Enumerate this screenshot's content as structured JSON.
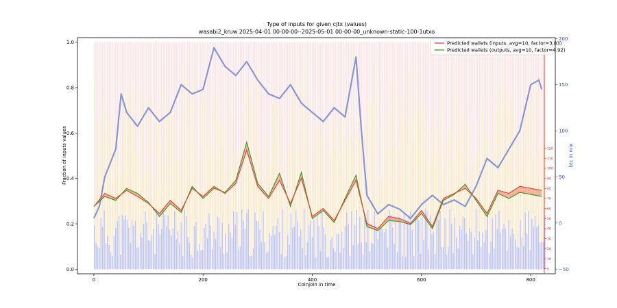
{
  "chart_data": {
    "type": "line",
    "title": "Type of inputs for given cjtx (values)",
    "subtitle": "wasabi2_kruw 2025-04-01 00-00-00--2025-05-01 00-00-00_unknown-static-100-1utxo",
    "xlabel": "Coinjoin in time",
    "ylabel": "Fraction of inputs values",
    "y2label": "btc in mix",
    "xlim": [
      -30,
      845
    ],
    "ylim": [
      -0.02,
      1.02
    ],
    "y2lim": [
      -55,
      201
    ],
    "y3lim": [
      -5,
      230
    ],
    "xticks": [
      "0",
      "200",
      "400",
      "600",
      "800"
    ],
    "yticks": [
      "0.0",
      "0.2",
      "0.4",
      "0.6",
      "0.8",
      "1.0"
    ],
    "y2ticks": [
      "−50",
      "0",
      "50",
      "100",
      "150",
      "200"
    ],
    "y3ticks": [
      "0",
      "10",
      "20",
      "30",
      "40",
      "50",
      "60",
      "70",
      "80",
      "90",
      "100",
      "110",
      "120"
    ],
    "colors": {
      "inputs": "#e8442c",
      "outputs": "#3a9a35",
      "btc": "#6e86d9",
      "bars_low": "#8b95f0",
      "bars_mid": "#f7d9a0",
      "bars_high": "#f5b8b8",
      "y2axis": "#3355cc",
      "y3axis": "#dd2222"
    },
    "legend": {
      "placement": "top-right",
      "entries": [
        "Predicted wallets (inputs, avg=10, factor=3.83)",
        "Predicted wallets (outputs, avg=10, factor=4.92)"
      ]
    },
    "series": [
      {
        "name": "Predicted wallets (inputs, avg=10, factor=3.83)",
        "axis": "right-red",
        "x": [
          0,
          20,
          40,
          60,
          80,
          100,
          120,
          140,
          160,
          180,
          200,
          220,
          240,
          260,
          280,
          300,
          320,
          340,
          360,
          380,
          400,
          420,
          440,
          460,
          480,
          500,
          520,
          540,
          560,
          580,
          600,
          620,
          640,
          660,
          680,
          700,
          720,
          740,
          760,
          780,
          800,
          820
        ],
        "y": [
          62,
          75,
          70,
          78,
          72,
          65,
          55,
          68,
          58,
          80,
          72,
          82,
          75,
          85,
          118,
          82,
          70,
          88,
          65,
          90,
          52,
          60,
          48,
          68,
          88,
          45,
          40,
          52,
          50,
          45,
          58,
          42,
          70,
          75,
          80,
          70,
          55,
          78,
          75,
          82,
          80,
          78
        ]
      },
      {
        "name": "Predicted wallets (outputs, avg=10, factor=4.92)",
        "axis": "right-red",
        "x": [
          0,
          20,
          40,
          60,
          80,
          100,
          120,
          140,
          160,
          180,
          200,
          220,
          240,
          260,
          280,
          300,
          320,
          340,
          360,
          380,
          400,
          420,
          440,
          460,
          480,
          500,
          520,
          540,
          560,
          580,
          600,
          620,
          640,
          660,
          680,
          700,
          720,
          740,
          760,
          780,
          800,
          820
        ],
        "y": [
          62,
          72,
          68,
          80,
          75,
          66,
          52,
          65,
          56,
          82,
          70,
          80,
          76,
          88,
          126,
          85,
          72,
          95,
          62,
          96,
          50,
          58,
          46,
          70,
          93,
          42,
          38,
          48,
          47,
          44,
          55,
          40,
          68,
          74,
          84,
          68,
          52,
          75,
          70,
          76,
          74,
          72
        ]
      },
      {
        "name": "btc in mix",
        "axis": "right-blue",
        "x": [
          0,
          10,
          20,
          40,
          50,
          60,
          80,
          100,
          120,
          140,
          160,
          180,
          200,
          220,
          240,
          260,
          280,
          300,
          320,
          340,
          360,
          380,
          400,
          420,
          440,
          460,
          480,
          490,
          500,
          520,
          540,
          560,
          580,
          600,
          620,
          640,
          660,
          680,
          700,
          720,
          740,
          760,
          780,
          800,
          815,
          820
        ],
        "y": [
          5,
          18,
          50,
          80,
          140,
          120,
          105,
          125,
          110,
          120,
          150,
          140,
          145,
          190,
          170,
          160,
          175,
          155,
          140,
          135,
          150,
          130,
          120,
          110,
          125,
          115,
          180,
          100,
          30,
          10,
          20,
          15,
          5,
          20,
          30,
          20,
          25,
          18,
          40,
          70,
          60,
          80,
          100,
          150,
          155,
          145
        ]
      }
    ]
  }
}
